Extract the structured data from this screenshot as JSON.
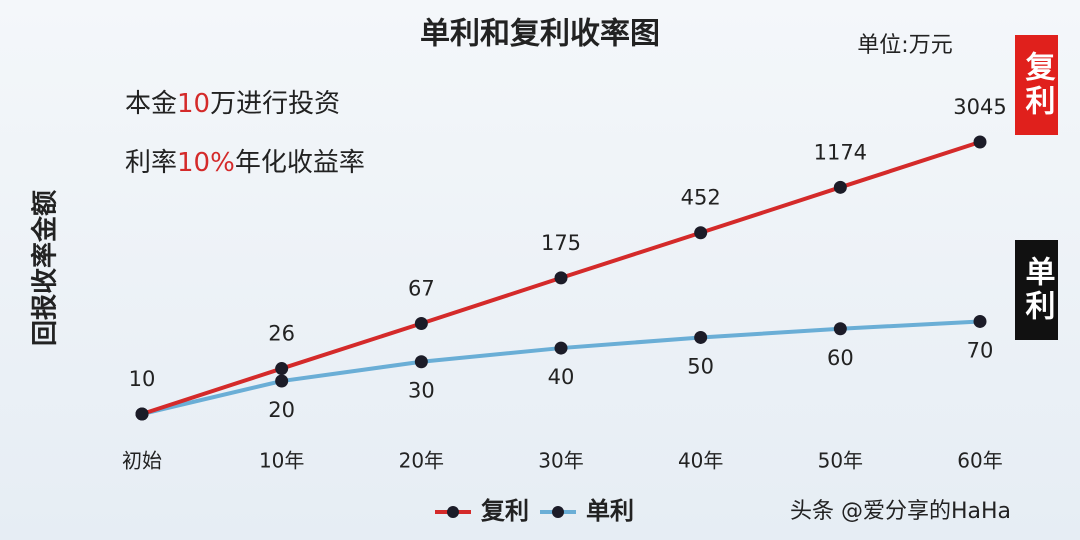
{
  "chart_data": {
    "type": "line",
    "title": "单利和复利收率图",
    "unit_note": "单位:万元",
    "notes": [
      [
        "本金",
        "10",
        "万进行投资"
      ],
      [
        "利率",
        "10%",
        "年化收益率"
      ]
    ],
    "y_label": "回报收率金额",
    "side_labels": [
      {
        "text": "复利",
        "color": "#e0201c"
      },
      {
        "text": "单利",
        "color": "#111111"
      }
    ],
    "categories": [
      "初始",
      "10年",
      "20年",
      "30年",
      "40年",
      "50年",
      "60年"
    ],
    "series": [
      {
        "name": "复利",
        "color": "#d42a2a",
        "values": [
          10,
          26,
          67,
          175,
          452,
          1174,
          3045
        ]
      },
      {
        "name": "单利",
        "color": "#6aaed6",
        "values": [
          10,
          20,
          30,
          40,
          50,
          60,
          70
        ]
      }
    ],
    "log_scale": true,
    "ylim": [
      10,
      3045
    ],
    "watermark": "头条 @爱分享的HaHa"
  }
}
